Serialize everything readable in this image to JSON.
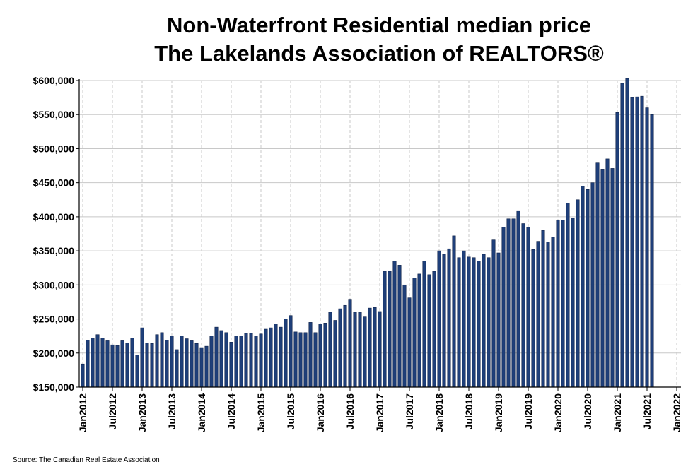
{
  "chart_data": {
    "type": "bar",
    "title": [
      "Non-Waterfront Residential median price",
      "The Lakelands Association of REALTORS®"
    ],
    "xlabel": "",
    "ylabel": "",
    "ylim": [
      150000,
      600000
    ],
    "y_ticks": [
      "$150,000",
      "$200,000",
      "$250,000",
      "$300,000",
      "$350,000",
      "$400,000",
      "$450,000",
      "$500,000",
      "$550,000",
      "$600,000"
    ],
    "x_ticks": [
      "Jan2012",
      "Jul2012",
      "Jan2013",
      "Jul2013",
      "Jan2014",
      "Jul2014",
      "Jan2015",
      "Jul2015",
      "Jan2016",
      "Jul2016",
      "Jan2017",
      "Jul2017",
      "Jan2018",
      "Jul2018",
      "Jan2019",
      "Jul2019",
      "Jan2020",
      "Jul2020",
      "Jan2021",
      "Jul2021",
      "Jan2022"
    ],
    "x_start": "Jan2012",
    "grid": true,
    "bar_color": "#1f3f7a",
    "values": [
      184000,
      219000,
      222000,
      227000,
      222000,
      218000,
      212000,
      211000,
      218000,
      215000,
      222000,
      197000,
      237000,
      215000,
      214000,
      227000,
      230000,
      219000,
      225000,
      205000,
      225000,
      221000,
      218000,
      214000,
      208000,
      210000,
      225000,
      238000,
      233000,
      230000,
      216000,
      225000,
      225000,
      229000,
      229000,
      225000,
      228000,
      235000,
      237000,
      243000,
      238000,
      250000,
      255000,
      231000,
      230000,
      230000,
      245000,
      230000,
      243000,
      244000,
      260000,
      248000,
      265000,
      270000,
      279000,
      260000,
      260000,
      253000,
      266000,
      267000,
      261000,
      320000,
      320000,
      335000,
      329000,
      300000,
      281000,
      310000,
      316000,
      335000,
      315000,
      320000,
      350000,
      345000,
      353000,
      372000,
      340000,
      350000,
      341000,
      340000,
      335000,
      345000,
      340000,
      366000,
      347000,
      385000,
      397000,
      397000,
      409000,
      390000,
      385000,
      352000,
      364000,
      380000,
      363000,
      370000,
      395000,
      395000,
      420000,
      398000,
      425000,
      445000,
      440000,
      450000,
      479000,
      470000,
      485000,
      471000,
      553000,
      596000,
      603000,
      575000,
      576000,
      577000,
      560000,
      550000
    ]
  },
  "source": "Source: The Canadian Real Estate Association"
}
